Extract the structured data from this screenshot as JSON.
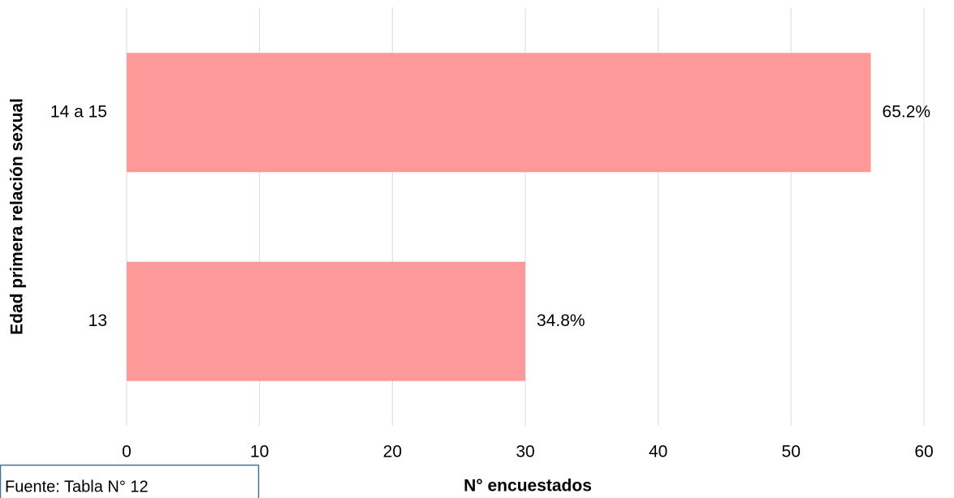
{
  "chart_data": {
    "type": "hbar",
    "categories": [
      "13",
      "14 a 15"
    ],
    "values": [
      30,
      56
    ],
    "annotations": [
      "34.8%",
      "65.2%"
    ],
    "color": "#fe999a",
    "xlim": [
      0,
      60
    ],
    "xticks": [
      0,
      10,
      20,
      30,
      40,
      50,
      60
    ],
    "grid": true,
    "xlabel": "N° encuestados",
    "ylabel": "Edad primera relación sexual",
    "source": "Fuente: Tabla  N° 12"
  }
}
